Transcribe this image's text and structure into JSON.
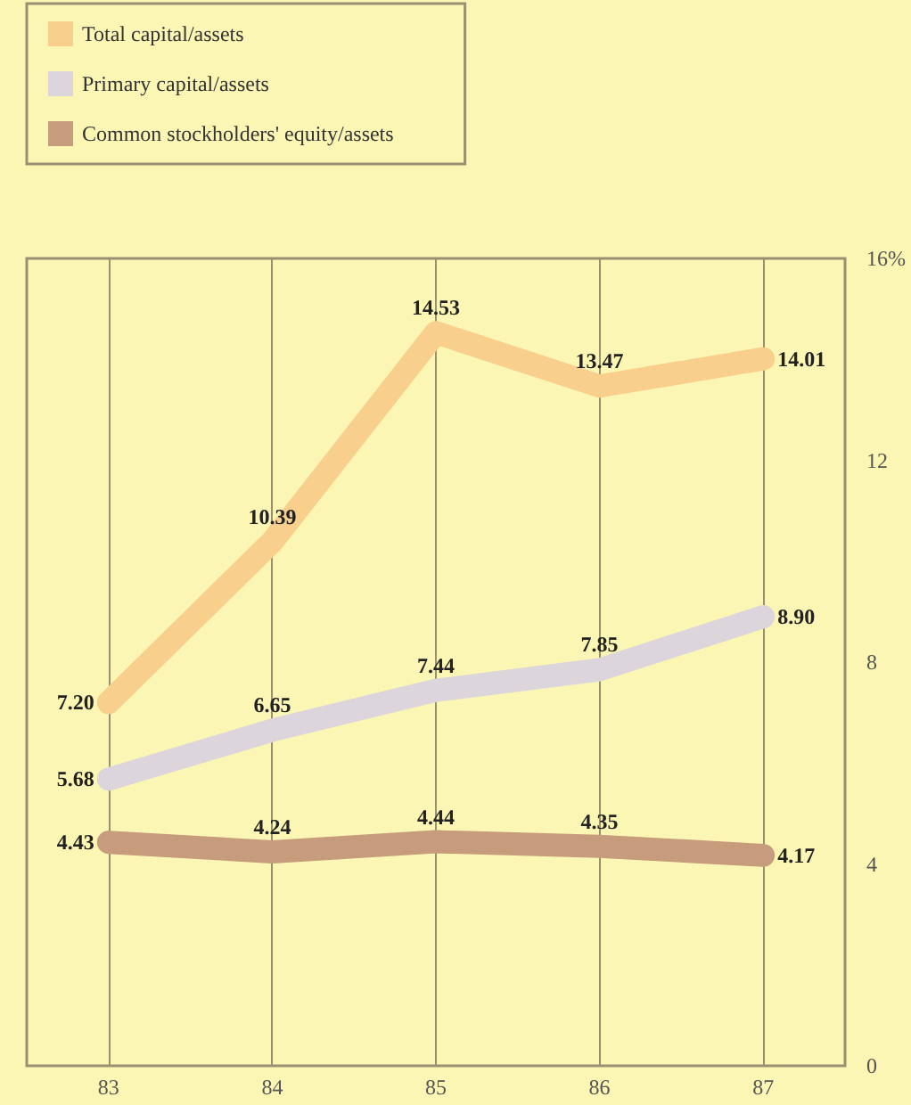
{
  "chart_data": {
    "type": "line",
    "categories": [
      "83",
      "84",
      "85",
      "86",
      "87"
    ],
    "series": [
      {
        "name": "Total capital/assets",
        "color": "#f8cf8c",
        "values": [
          7.2,
          10.39,
          14.53,
          13.47,
          14.01
        ],
        "value_labels": [
          "7.20",
          "10.39",
          "14.53",
          "13.47",
          "14.01"
        ]
      },
      {
        "name": "Primary capital/assets",
        "color": "#dcd6dc",
        "values": [
          5.68,
          6.65,
          7.44,
          7.85,
          8.9
        ],
        "value_labels": [
          "5.68",
          "6.65",
          "7.44",
          "7.85",
          "8.90"
        ]
      },
      {
        "name": "Common stockholders' equity/assets",
        "color": "#c69c7c",
        "values": [
          4.43,
          4.24,
          4.44,
          4.35,
          4.17
        ],
        "value_labels": [
          "4.43",
          "4.24",
          "4.44",
          "4.35",
          "4.17"
        ]
      }
    ],
    "ylim": [
      0,
      16
    ],
    "yticks": [
      0,
      4,
      8,
      12,
      {
        "value": 16,
        "label": "16%"
      }
    ],
    "grid": "x",
    "legend": "top left",
    "line_style": "solid"
  }
}
